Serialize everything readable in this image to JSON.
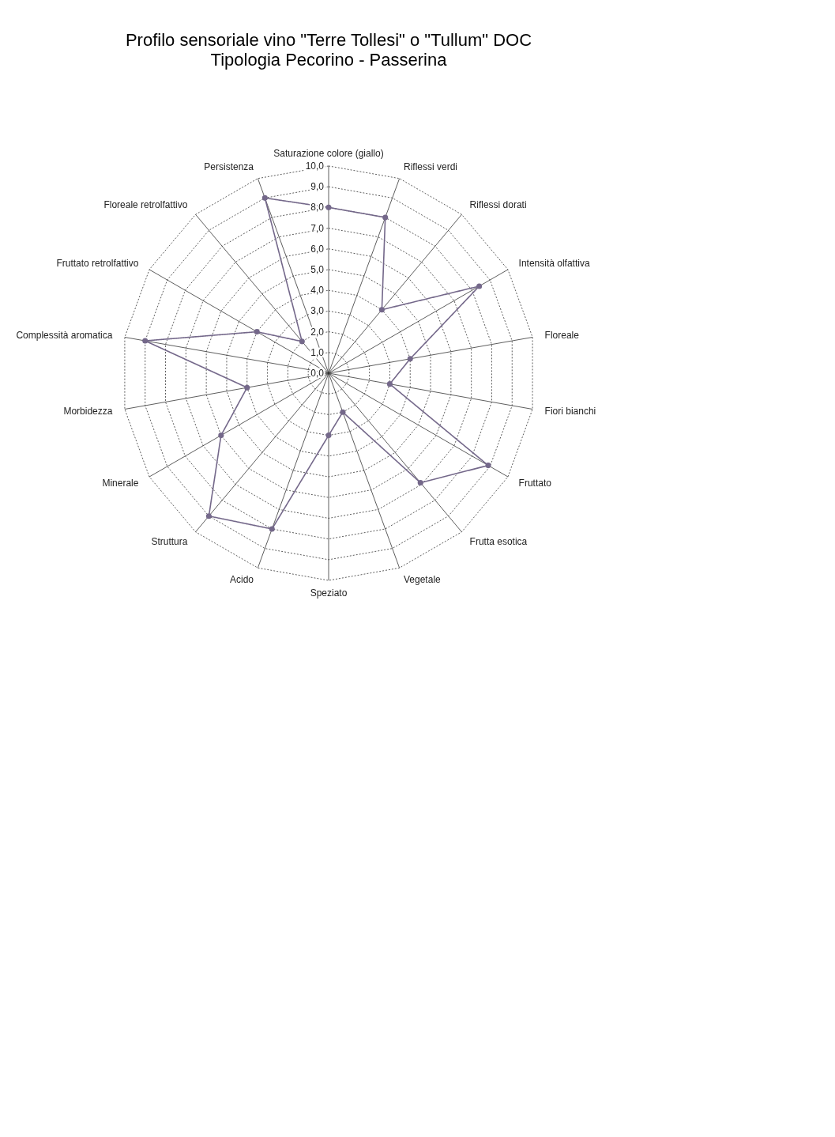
{
  "chart_data": {
    "type": "radar",
    "title": "Profilo sensoriale vino \"Terre Tollesi\" o \"Tullum\" DOC",
    "subtitle": "Tipologia Pecorino - Passerina",
    "categories": [
      "Saturazione colore (giallo)",
      "Riflessi verdi",
      "Riflessi dorati",
      "Intensità olfattiva",
      "Floreale",
      "Fiori bianchi",
      "Fruttato",
      "Frutta esotica",
      "Vegetale",
      "Speziato",
      "Acido",
      "Struttura",
      "Minerale",
      "Morbidezza",
      "Complessità aromatica",
      "Fruttato retrolfattivo",
      "Floreale retrolfattivo",
      "Persistenza"
    ],
    "series": [
      {
        "color": "#74688a",
        "values": [
          8.0,
          8.0,
          4.0,
          8.4,
          4.0,
          3.0,
          8.9,
          6.9,
          2.0,
          3.0,
          8.0,
          9.0,
          6.0,
          4.0,
          9.0,
          4.0,
          2.0,
          9.0
        ]
      }
    ],
    "ylim": [
      0,
      10
    ],
    "yticks": [
      {
        "value": 0,
        "label": "0,0"
      },
      {
        "value": 1,
        "label": "1,0"
      },
      {
        "value": 2,
        "label": "2,0"
      },
      {
        "value": 3,
        "label": "3,0"
      },
      {
        "value": 4,
        "label": "4,0"
      },
      {
        "value": 5,
        "label": "5,0"
      },
      {
        "value": 6,
        "label": "6,0"
      },
      {
        "value": 7,
        "label": "7,0"
      },
      {
        "value": 8,
        "label": "8,0"
      },
      {
        "value": 9,
        "label": "9,0"
      },
      {
        "value": 10,
        "label": "10,0"
      }
    ],
    "grid": true,
    "marker": "circle",
    "line_style": "solid"
  }
}
